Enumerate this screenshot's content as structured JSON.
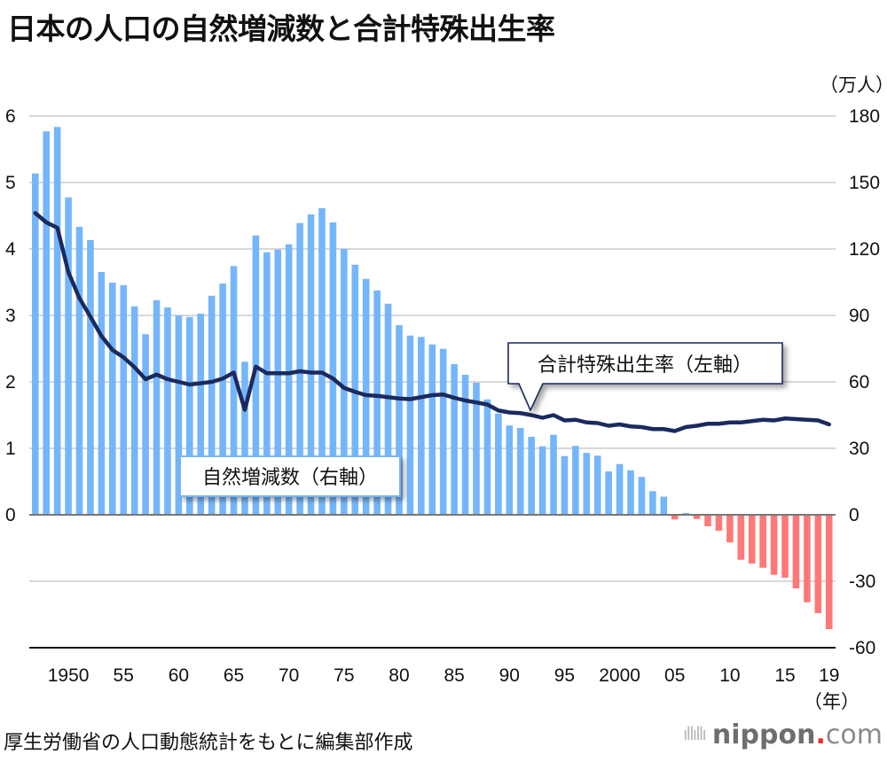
{
  "title": "日本の人口の自然増減数と合計特殊出生率",
  "source": "厚生労働省の人口動態統計をもとに編集部作成",
  "logo": {
    "brand": "nippon",
    "dot": ".",
    "tld": "com",
    "icon": "sound-bars-icon"
  },
  "colors": {
    "positive_bar": "#74b6fb",
    "negative_bar": "#ff7878",
    "line": "#1b2a5e",
    "grid": "#cccccc",
    "zero_line": "#777777",
    "axis": "#111111"
  },
  "chart_data": {
    "type": "bar+line",
    "title": "日本の人口の自然増減数と合計特殊出生率",
    "x": [
      1947,
      1948,
      1949,
      1950,
      1951,
      1952,
      1953,
      1954,
      1955,
      1956,
      1957,
      1958,
      1959,
      1960,
      1961,
      1962,
      1963,
      1964,
      1965,
      1966,
      1967,
      1968,
      1969,
      1970,
      1971,
      1972,
      1973,
      1974,
      1975,
      1976,
      1977,
      1978,
      1979,
      1980,
      1981,
      1982,
      1983,
      1984,
      1985,
      1986,
      1987,
      1988,
      1989,
      1990,
      1991,
      1992,
      1993,
      1994,
      1995,
      1996,
      1997,
      1998,
      1999,
      2000,
      2001,
      2002,
      2003,
      2004,
      2005,
      2006,
      2007,
      2008,
      2009,
      2010,
      2011,
      2012,
      2013,
      2014,
      2015,
      2016,
      2017,
      2018,
      2019
    ],
    "xtick_labels": [
      {
        "year": 1950,
        "label": "1950"
      },
      {
        "year": 1955,
        "label": "55"
      },
      {
        "year": 1960,
        "label": "60"
      },
      {
        "year": 1965,
        "label": "65"
      },
      {
        "year": 1970,
        "label": "70"
      },
      {
        "year": 1975,
        "label": "75"
      },
      {
        "year": 1980,
        "label": "80"
      },
      {
        "year": 1985,
        "label": "85"
      },
      {
        "year": 1990,
        "label": "90"
      },
      {
        "year": 1995,
        "label": "95"
      },
      {
        "year": 2000,
        "label": "2000"
      },
      {
        "year": 2005,
        "label": "05"
      },
      {
        "year": 2010,
        "label": "10"
      },
      {
        "year": 2015,
        "label": "15"
      },
      {
        "year": 2019,
        "label": "19"
      }
    ],
    "xlabel": "（年）",
    "series": [
      {
        "name": "自然増減数（右軸）",
        "type": "bar",
        "axis": "right",
        "unit": "万人",
        "values": [
          154.1,
          173.1,
          175.1,
          143.3,
          130.0,
          124.0,
          109.6,
          104.8,
          103.7,
          94.1,
          81.5,
          96.9,
          93.6,
          90.0,
          89.3,
          90.8,
          98.9,
          104.4,
          112.3,
          69.1,
          126.1,
          118.5,
          119.7,
          122.1,
          131.7,
          135.6,
          138.4,
          132.0,
          120.0,
          112.9,
          106.5,
          101.3,
          95.3,
          85.6,
          80.9,
          80.3,
          76.9,
          74.9,
          68.0,
          63.2,
          59.6,
          52.1,
          45.7,
          40.3,
          39.2,
          35.2,
          30.9,
          36.1,
          26.5,
          31.1,
          27.9,
          26.7,
          19.6,
          22.9,
          20.1,
          17.1,
          10.7,
          8.2,
          -2.1,
          0.8,
          -1.9,
          -5.2,
          -7.2,
          -12.5,
          -20.3,
          -22.0,
          -23.9,
          -27.1,
          -28.4,
          -33.2,
          -39.5,
          -44.4,
          -51.6
        ]
      },
      {
        "name": "合計特殊出生率（左軸）",
        "type": "line",
        "axis": "left",
        "values": [
          4.54,
          4.4,
          4.32,
          3.65,
          3.26,
          2.98,
          2.69,
          2.48,
          2.37,
          2.22,
          2.04,
          2.11,
          2.04,
          2.0,
          1.96,
          1.98,
          2.0,
          2.05,
          2.14,
          1.58,
          2.23,
          2.13,
          2.13,
          2.13,
          2.16,
          2.14,
          2.14,
          2.05,
          1.91,
          1.85,
          1.8,
          1.79,
          1.77,
          1.75,
          1.74,
          1.77,
          1.8,
          1.81,
          1.76,
          1.72,
          1.69,
          1.66,
          1.57,
          1.54,
          1.53,
          1.5,
          1.46,
          1.5,
          1.42,
          1.43,
          1.39,
          1.38,
          1.34,
          1.36,
          1.33,
          1.32,
          1.29,
          1.29,
          1.26,
          1.32,
          1.34,
          1.37,
          1.37,
          1.39,
          1.39,
          1.41,
          1.43,
          1.42,
          1.45,
          1.44,
          1.43,
          1.42,
          1.36
        ]
      }
    ],
    "left_axis": {
      "ylim": [
        -2,
        6
      ],
      "ticks": [
        0,
        1,
        2,
        3,
        4,
        5,
        6
      ],
      "tick_labels": [
        "0",
        "1",
        "2",
        "3",
        "4",
        "5",
        "6"
      ]
    },
    "right_axis": {
      "ylim": [
        -60,
        180
      ],
      "ticks": [
        -60,
        -30,
        0,
        30,
        60,
        90,
        120,
        150,
        180
      ],
      "tick_labels": [
        "-60",
        "-30",
        "0",
        "30",
        "60",
        "90",
        "120",
        "150",
        "180"
      ],
      "unit": "（万人）"
    },
    "grid": true,
    "annotations": [
      {
        "text": "合計特殊出生率（左軸）",
        "target": "line",
        "style": "callout",
        "anchor_year": 1992
      },
      {
        "text": "自然増減数（右軸）",
        "target": "bars",
        "style": "label"
      }
    ]
  }
}
